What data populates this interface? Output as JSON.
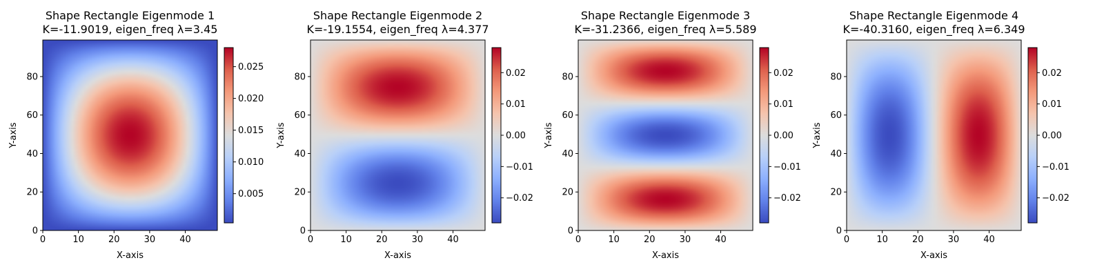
{
  "chart_data": [
    {
      "type": "heatmap",
      "title_line1": "Shape Rectangle Eigenmode 1",
      "title_line2": "K=-11.9019, eigen_freq λ=3.45",
      "xlabel": "X-axis",
      "ylabel": "Y-axis",
      "xlim": [
        0,
        49
      ],
      "ylim": [
        0,
        99
      ],
      "xticks": [
        0,
        10,
        20,
        30,
        40
      ],
      "yticks": [
        0,
        20,
        40,
        60,
        80
      ],
      "mode": [
        1,
        1
      ],
      "amplitude": 0.028,
      "colormap": "coolwarm",
      "colorbar": {
        "vmin": 0.0004,
        "vmax": 0.028,
        "ticks": [
          0.005,
          0.01,
          0.015,
          0.02,
          0.025
        ],
        "tick_labels": [
          "0.005",
          "0.010",
          "0.015",
          "0.020",
          "0.025"
        ]
      }
    },
    {
      "type": "heatmap",
      "title_line1": "Shape Rectangle Eigenmode 2",
      "title_line2": "K=-19.1554, eigen_freq λ=4.377",
      "xlabel": "X-axis",
      "ylabel": "Y-axis",
      "xlim": [
        0,
        49
      ],
      "ylim": [
        0,
        99
      ],
      "xticks": [
        0,
        10,
        20,
        30,
        40
      ],
      "yticks": [
        0,
        20,
        40,
        60,
        80
      ],
      "mode": [
        1,
        2
      ],
      "amplitude": -0.028,
      "colormap": "coolwarm",
      "colorbar": {
        "vmin": -0.028,
        "vmax": 0.028,
        "ticks": [
          -0.02,
          -0.01,
          0,
          0.01,
          0.02
        ],
        "tick_labels": [
          "−0.02",
          "−0.01",
          "0.00",
          "0.01",
          "0.02"
        ]
      }
    },
    {
      "type": "heatmap",
      "title_line1": "Shape Rectangle Eigenmode 3",
      "title_line2": "K=-31.2366, eigen_freq λ=5.589",
      "xlabel": "X-axis",
      "ylabel": "Y-axis",
      "xlim": [
        0,
        49
      ],
      "ylim": [
        0,
        99
      ],
      "xticks": [
        0,
        10,
        20,
        30,
        40
      ],
      "yticks": [
        0,
        20,
        40,
        60,
        80
      ],
      "mode": [
        1,
        3
      ],
      "amplitude": 0.028,
      "colormap": "coolwarm",
      "colorbar": {
        "vmin": -0.028,
        "vmax": 0.028,
        "ticks": [
          -0.02,
          -0.01,
          0,
          0.01,
          0.02
        ],
        "tick_labels": [
          "−0.02",
          "−0.01",
          "0.00",
          "0.01",
          "0.02"
        ]
      }
    },
    {
      "type": "heatmap",
      "title_line1": "Shape Rectangle Eigenmode 4",
      "title_line2": "K=-40.3160, eigen_freq λ=6.349",
      "xlabel": "X-axis",
      "ylabel": "Y-axis",
      "xlim": [
        0,
        49
      ],
      "ylim": [
        0,
        99
      ],
      "xticks": [
        0,
        10,
        20,
        30,
        40
      ],
      "yticks": [
        0,
        20,
        40,
        60,
        80
      ],
      "mode": [
        2,
        1
      ],
      "amplitude": -0.028,
      "colormap": "coolwarm",
      "colorbar": {
        "vmin": -0.028,
        "vmax": 0.028,
        "ticks": [
          -0.02,
          -0.01,
          0,
          0.01,
          0.02
        ],
        "tick_labels": [
          "−0.02",
          "−0.01",
          "0.00",
          "0.01",
          "0.02"
        ]
      }
    }
  ]
}
